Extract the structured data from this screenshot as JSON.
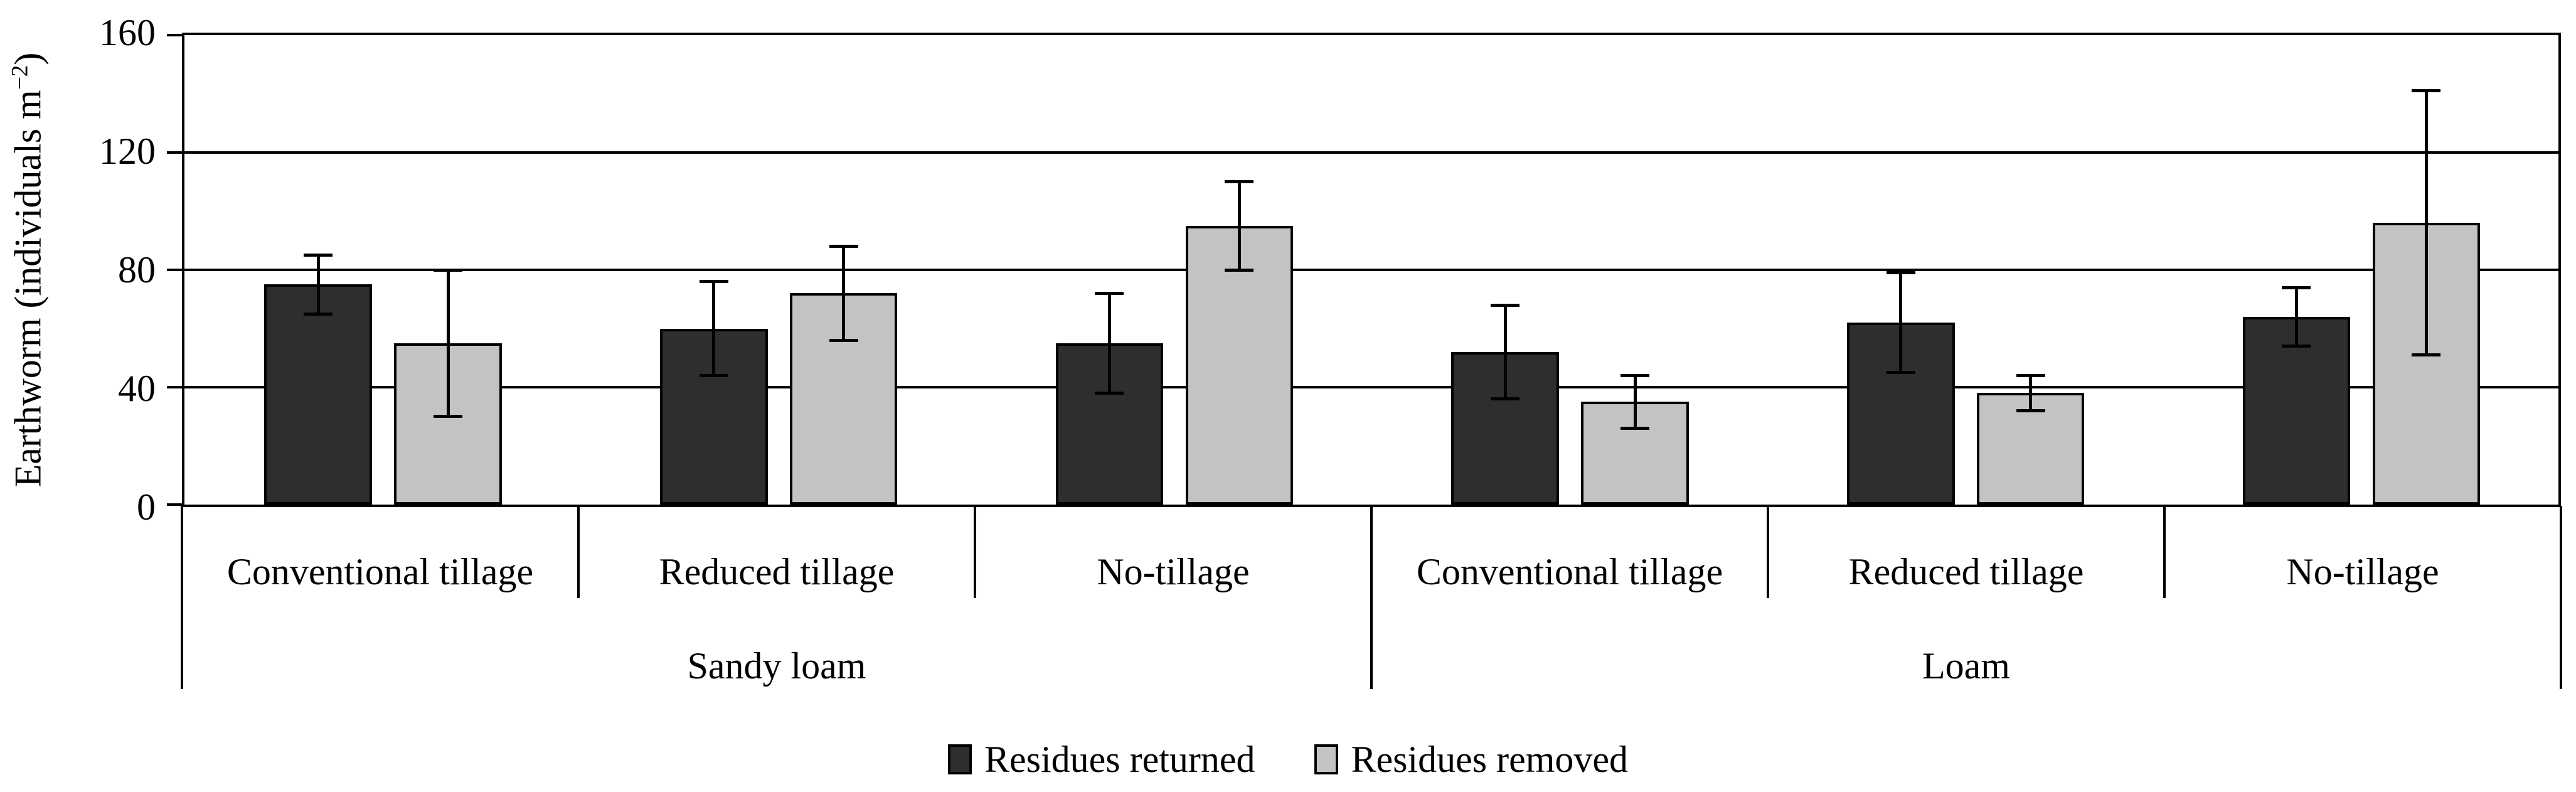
{
  "ylabel_parts": {
    "pre": "Earthworm (individuals m",
    "sup": "−2",
    "post": ")"
  },
  "chart_data": {
    "type": "bar",
    "title": "",
    "ylabel": "Earthworm (individuals m−2)",
    "xlabel": "",
    "ylim": [
      0,
      160
    ],
    "yticks": [
      0,
      40,
      80,
      120,
      160
    ],
    "grid": "horizontal gridlines at every y tick, full plot width, behind bars",
    "legend_position": "bottom-center",
    "error_bars": "symmetric, black whiskers with caps",
    "soil_groups": [
      "Sandy loam",
      "Loam"
    ],
    "categories": [
      "Conventional tillage",
      "Reduced tillage",
      "No-tillage",
      "Conventional tillage",
      "Reduced tillage",
      "No-tillage"
    ],
    "series": [
      {
        "name": "Residues returned",
        "color": "#2e2e2e",
        "values": [
          75,
          60,
          55,
          52,
          62,
          64
        ],
        "errors": [
          10,
          16,
          17,
          16,
          17,
          10
        ]
      },
      {
        "name": "Residues removed",
        "color": "#c3c3c3",
        "values": [
          55,
          72,
          95,
          35,
          38,
          96
        ],
        "errors": [
          25,
          16,
          15,
          9,
          6,
          45
        ]
      }
    ]
  }
}
